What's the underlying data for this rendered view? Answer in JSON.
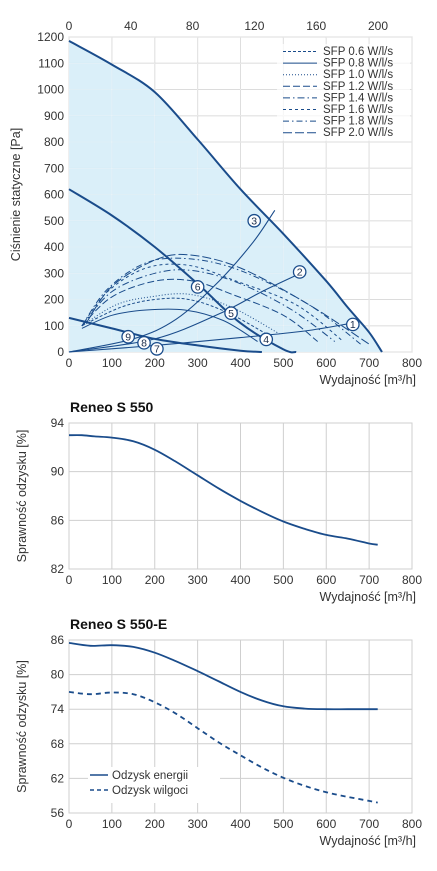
{
  "colors": {
    "curve": "#1a4c8b",
    "fill": "#d3ecf8",
    "grid": "#cfcfcf",
    "text": "#333333"
  },
  "chart_data": [
    {
      "type": "line",
      "xlabel": "Wydajność [m³/h]",
      "ylabel": "Ciśnienie statyczne [Pa]",
      "xlim": [
        0,
        800
      ],
      "ylim": [
        0,
        1200
      ],
      "x_ticks": [
        "0",
        "100",
        "200",
        "300",
        "400",
        "500",
        "600",
        "700",
        "800"
      ],
      "top_xlim": [
        0,
        222
      ],
      "top_x_ticks": [
        "0",
        "40",
        "80",
        "120",
        "160",
        "200"
      ],
      "y_ticks": [
        "0",
        "100",
        "200",
        "300",
        "400",
        "500",
        "600",
        "700",
        "800",
        "900",
        "1000",
        "1100",
        "1200"
      ],
      "grid": true,
      "legend_position": "top-right",
      "sfp_legend": [
        {
          "label": "SFP 0.6 W/l/s",
          "dash": "3,2"
        },
        {
          "label": "SFP 0.8 W/l/s",
          "dash": ""
        },
        {
          "label": "SFP 1.0 W/l/s",
          "dash": "1,2"
        },
        {
          "label": "SFP 1.2 W/l/s",
          "dash": "7,3"
        },
        {
          "label": "SFP 1.4 W/l/s",
          "dash": "7,3,1.5,3"
        },
        {
          "label": "SFP 1.6 W/l/s",
          "dash": "3,3"
        },
        {
          "label": "SFP 1.8 W/l/s",
          "dash": "6,3,1.5,3"
        },
        {
          "label": "SFP 2.0 W/l/s",
          "dash": "9,3"
        }
      ],
      "fan_curves": [
        {
          "name": "max",
          "x": [
            0,
            100,
            200,
            300,
            400,
            500,
            600,
            650,
            700,
            730
          ],
          "y": [
            1185,
            1095,
            990,
            810,
            620,
            450,
            270,
            170,
            75,
            0
          ]
        },
        {
          "name": "mid",
          "x": [
            0,
            100,
            200,
            300,
            400,
            500,
            530
          ],
          "y": [
            620,
            520,
            400,
            260,
            110,
            10,
            0
          ]
        },
        {
          "name": "low",
          "x": [
            0,
            100,
            200,
            300,
            400,
            450
          ],
          "y": [
            130,
            90,
            50,
            25,
            5,
            0
          ]
        }
      ],
      "sfp_curves": [
        {
          "x": [
            30,
            120,
            200,
            280,
            370,
            470
          ],
          "y": [
            100,
            170,
            200,
            200,
            150,
            60
          ]
        },
        {
          "x": [
            30,
            100,
            180,
            270,
            360,
            440
          ],
          "y": [
            90,
            140,
            160,
            160,
            120,
            40
          ]
        },
        {
          "x": [
            30,
            110,
            190,
            280,
            380,
            490
          ],
          "y": [
            100,
            180,
            210,
            220,
            170,
            70
          ]
        },
        {
          "x": [
            30,
            100,
            200,
            290,
            380,
            500,
            580
          ],
          "y": [
            100,
            210,
            270,
            270,
            220,
            140,
            40
          ]
        },
        {
          "x": [
            30,
            100,
            200,
            290,
            400,
            520,
            620
          ],
          "y": [
            100,
            230,
            300,
            310,
            260,
            160,
            40
          ]
        },
        {
          "x": [
            30,
            90,
            180,
            280,
            390,
            530,
            640
          ],
          "y": [
            100,
            230,
            320,
            330,
            270,
            180,
            40
          ]
        },
        {
          "x": [
            30,
            90,
            180,
            280,
            400,
            560,
            680
          ],
          "y": [
            100,
            240,
            340,
            355,
            310,
            180,
            30
          ]
        },
        {
          "x": [
            40,
            100,
            200,
            280,
            400,
            560,
            700
          ],
          "y": [
            110,
            250,
            350,
            370,
            320,
            180,
            30
          ]
        }
      ],
      "system_curves": [
        {
          "x": [
            0,
            150,
            250,
            350,
            430,
            480
          ],
          "y": [
            0,
            50,
            125,
            270,
            420,
            540
          ]
        },
        {
          "x": [
            0,
            200,
            350,
            450,
            540
          ],
          "y": [
            0,
            50,
            145,
            230,
            300
          ]
        },
        {
          "x": [
            0,
            200,
            400,
            550,
            660
          ],
          "y": [
            0,
            25,
            55,
            80,
            110
          ]
        }
      ],
      "markers": [
        {
          "label": "1",
          "x": 662,
          "y": 105
        },
        {
          "label": "2",
          "x": 538,
          "y": 305
        },
        {
          "label": "3",
          "x": 432,
          "y": 500
        },
        {
          "label": "4",
          "x": 460,
          "y": 48
        },
        {
          "label": "5",
          "x": 378,
          "y": 148
        },
        {
          "label": "6",
          "x": 300,
          "y": 248
        },
        {
          "label": "7",
          "x": 205,
          "y": 12
        },
        {
          "label": "8",
          "x": 175,
          "y": 35
        },
        {
          "label": "9",
          "x": 138,
          "y": 58
        }
      ]
    },
    {
      "type": "line",
      "title": "Reneo S 550",
      "xlabel": "Wydajność [m³/h]",
      "ylabel": "Sprawność odzysku [%]",
      "xlim": [
        0,
        800
      ],
      "ylim": [
        82,
        94
      ],
      "x_ticks": [
        "0",
        "100",
        "200",
        "300",
        "400",
        "500",
        "600",
        "700",
        "800"
      ],
      "y_ticks": [
        "82",
        "86",
        "90",
        "94"
      ],
      "grid": true,
      "series": [
        {
          "x": [
            0,
            30,
            60,
            100,
            150,
            200,
            250,
            300,
            350,
            400,
            450,
            500,
            550,
            600,
            650,
            700,
            720
          ],
          "y": [
            93.0,
            93.0,
            92.9,
            92.8,
            92.5,
            91.8,
            90.8,
            89.7,
            88.6,
            87.6,
            86.7,
            85.9,
            85.3,
            84.8,
            84.5,
            84.1,
            84.0
          ]
        }
      ]
    },
    {
      "type": "line",
      "title": "Reneo S 550-E",
      "xlabel": "Wydajność [m³/h]",
      "ylabel": "Sprawność odzysku [%]",
      "xlim": [
        0,
        800
      ],
      "ylim": [
        56,
        86
      ],
      "x_ticks": [
        "0",
        "100",
        "200",
        "300",
        "400",
        "500",
        "600",
        "700",
        "800"
      ],
      "y_ticks": [
        "56",
        "62",
        "68",
        "74",
        "80",
        "86"
      ],
      "grid": true,
      "legend_position": "bottom-left",
      "series": [
        {
          "name": "Odzysk energii",
          "dash": "",
          "x": [
            0,
            50,
            100,
            150,
            200,
            250,
            300,
            350,
            400,
            450,
            500,
            550,
            600,
            650,
            700,
            720
          ],
          "y": [
            85.5,
            85.0,
            85.1,
            84.8,
            83.8,
            82.3,
            80.6,
            78.8,
            77.0,
            75.5,
            74.5,
            74.1,
            74.0,
            74.0,
            74.0,
            74.0
          ]
        },
        {
          "name": "Odzysk wilgoci",
          "dash": "5,4",
          "x": [
            0,
            50,
            100,
            150,
            200,
            250,
            300,
            350,
            400,
            450,
            500,
            550,
            600,
            650,
            700,
            720
          ],
          "y": [
            77.0,
            76.6,
            76.9,
            76.6,
            75.2,
            73.2,
            70.7,
            68.2,
            66.0,
            63.9,
            62.1,
            60.7,
            59.6,
            58.8,
            58.1,
            57.8
          ]
        }
      ]
    }
  ]
}
